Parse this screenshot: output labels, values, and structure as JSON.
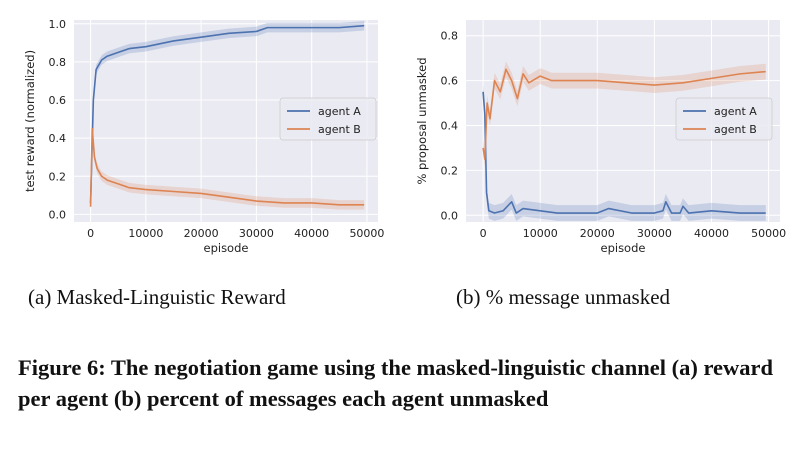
{
  "chart_data": [
    {
      "type": "line",
      "xlabel": "episode",
      "ylabel": "test reward (normalized)",
      "xlim": [
        -3000,
        52000
      ],
      "ylim": [
        -0.04,
        1.02
      ],
      "x_ticks": [
        0,
        10000,
        20000,
        30000,
        40000,
        50000
      ],
      "y_ticks": [
        0.0,
        0.2,
        0.4,
        0.6,
        0.8,
        1.0
      ],
      "grid": true,
      "legend_position": "center-right",
      "series": [
        {
          "name": "agent A",
          "color": "#4c72b0",
          "x": [
            0,
            500,
            1000,
            2000,
            3000,
            5000,
            7000,
            10000,
            15000,
            20000,
            25000,
            30000,
            32000,
            35000,
            40000,
            45000,
            49500
          ],
          "values": [
            0.06,
            0.6,
            0.76,
            0.81,
            0.83,
            0.85,
            0.87,
            0.88,
            0.91,
            0.93,
            0.95,
            0.96,
            0.98,
            0.98,
            0.98,
            0.98,
            0.99
          ]
        },
        {
          "name": "agent B",
          "color": "#dd8452",
          "x": [
            0,
            300,
            700,
            1200,
            2000,
            3000,
            5000,
            7000,
            10000,
            15000,
            20000,
            25000,
            30000,
            35000,
            40000,
            45000,
            49500
          ],
          "values": [
            0.04,
            0.45,
            0.3,
            0.24,
            0.2,
            0.18,
            0.16,
            0.14,
            0.13,
            0.12,
            0.11,
            0.09,
            0.07,
            0.06,
            0.06,
            0.05,
            0.05
          ]
        }
      ]
    },
    {
      "type": "line",
      "xlabel": "episode",
      "ylabel": "% proposal unmasked",
      "xlim": [
        -3000,
        52000
      ],
      "ylim": [
        -0.03,
        0.87
      ],
      "x_ticks": [
        0,
        10000,
        20000,
        30000,
        40000,
        50000
      ],
      "y_ticks": [
        0.0,
        0.2,
        0.4,
        0.6,
        0.8
      ],
      "grid": true,
      "legend_position": "center-right",
      "series": [
        {
          "name": "agent A",
          "color": "#4c72b0",
          "x": [
            0,
            300,
            600,
            1000,
            2000,
            3500,
            5000,
            5800,
            7000,
            10000,
            13000,
            20000,
            22000,
            26000,
            30000,
            31500,
            32000,
            33000,
            34500,
            35000,
            36000,
            40000,
            45000,
            49500
          ],
          "values": [
            0.55,
            0.45,
            0.1,
            0.02,
            0.01,
            0.02,
            0.06,
            0.01,
            0.03,
            0.02,
            0.01,
            0.01,
            0.03,
            0.01,
            0.01,
            0.02,
            0.06,
            0.01,
            0.01,
            0.04,
            0.01,
            0.02,
            0.01,
            0.01
          ]
        },
        {
          "name": "agent B",
          "color": "#dd8452",
          "x": [
            0,
            300,
            700,
            1200,
            2000,
            3000,
            4000,
            5000,
            6000,
            7000,
            8000,
            10000,
            12000,
            15000,
            20000,
            25000,
            30000,
            35000,
            40000,
            45000,
            49500
          ],
          "values": [
            0.3,
            0.25,
            0.5,
            0.43,
            0.6,
            0.55,
            0.65,
            0.6,
            0.52,
            0.63,
            0.59,
            0.62,
            0.6,
            0.6,
            0.6,
            0.59,
            0.58,
            0.59,
            0.61,
            0.63,
            0.64
          ]
        }
      ]
    }
  ],
  "subcaptions": {
    "a": "(a) Masked-Linguistic Reward",
    "b": "(b) % message unmasked"
  },
  "caption": "Figure 6: The negotiation game using the masked-linguistic channel (a) reward per agent (b) percent of messages each agent unmasked"
}
